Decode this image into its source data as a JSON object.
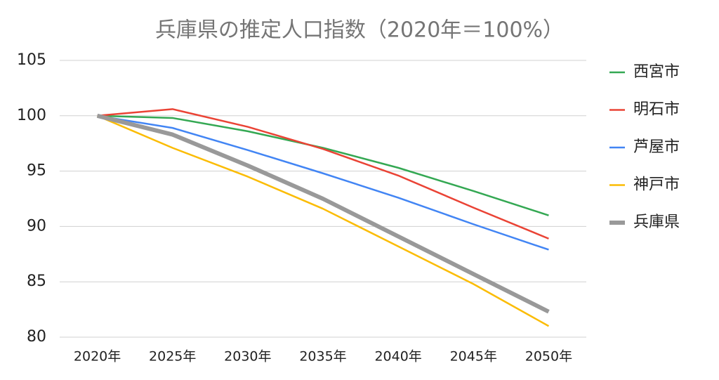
{
  "chart_data": {
    "type": "line",
    "title": "兵庫県の推定人口指数（2020年＝100%）",
    "categories": [
      "2020年",
      "2025年",
      "2030年",
      "2035年",
      "2040年",
      "2045年",
      "2050年"
    ],
    "series": [
      {
        "name": "西宮市",
        "color": "#34a853",
        "values": [
          100,
          99.8,
          98.6,
          97.1,
          95.3,
          93.2,
          91.0
        ]
      },
      {
        "name": "明石市",
        "color": "#ea4335",
        "values": [
          100,
          100.6,
          99.0,
          97.0,
          94.6,
          91.7,
          88.9
        ]
      },
      {
        "name": "芦屋市",
        "color": "#4285f4",
        "values": [
          100,
          98.9,
          96.9,
          94.8,
          92.6,
          90.2,
          87.9
        ]
      },
      {
        "name": "神戸市",
        "color": "#fbbc04",
        "values": [
          100,
          97.1,
          94.5,
          91.6,
          88.2,
          84.8,
          81.0
        ]
      },
      {
        "name": "兵庫県",
        "color": "#999999",
        "values": [
          100,
          98.3,
          95.5,
          92.5,
          89.1,
          85.7,
          82.3
        ]
      }
    ],
    "ylim": [
      80,
      105
    ],
    "yticks": [
      80,
      85,
      90,
      95,
      100,
      105
    ],
    "grid": true,
    "legend": "right"
  }
}
